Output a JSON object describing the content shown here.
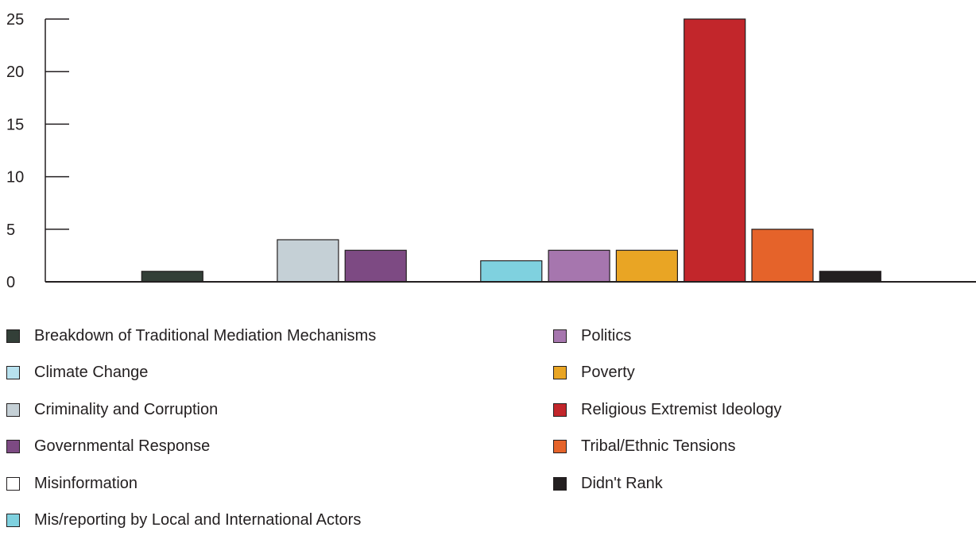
{
  "chart_data": {
    "type": "bar",
    "categories": [
      "Breakdown of Traditional Mediation Mechanisms",
      "Climate Change",
      "Criminality and Corruption",
      "Governmental Response",
      "Misinformation",
      "Mis/reporting by Local and International Actors",
      "Politics",
      "Poverty",
      "Religious Extremist Ideology",
      "Tribal/Ethnic Tensions",
      "Didn't Rank"
    ],
    "values": [
      1,
      0,
      4,
      3,
      0,
      2,
      3,
      3,
      25,
      5,
      1
    ],
    "colors": [
      "#333f38",
      "#b8e2ef",
      "#c5d0d6",
      "#7d4a83",
      "#ffffff",
      "#7fd1df",
      "#a676ae",
      "#e9a524",
      "#c2262b",
      "#e5632a",
      "#231f20"
    ],
    "title": "",
    "xlabel": "",
    "ylabel": "",
    "ylim": [
      0,
      25
    ],
    "yticks": [
      "0",
      "5",
      "10",
      "15",
      "20",
      "25"
    ],
    "grid": false,
    "legend_position": "bottom"
  }
}
